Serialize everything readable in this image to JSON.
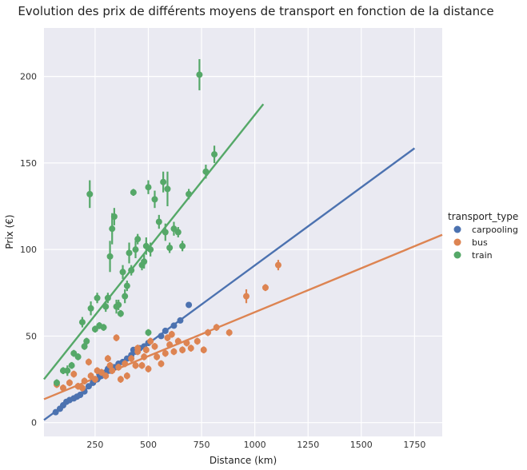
{
  "chart_data": {
    "type": "scatter",
    "title": "Evolution des prix de différents moyens de transport en fonction de la distance",
    "xlabel": "Distance (km)",
    "ylabel": "Prix (€)",
    "xlim": [
      10,
      1880
    ],
    "ylim": [
      -8,
      228
    ],
    "xticks": [
      "250",
      "500",
      "750",
      "1000",
      "1250",
      "1500",
      "1750"
    ],
    "xtick_values": [
      250,
      500,
      750,
      1000,
      1250,
      1500,
      1750
    ],
    "yticks": [
      "0",
      "50",
      "100",
      "150",
      "200"
    ],
    "ytick_values": [
      0,
      50,
      100,
      150,
      200
    ],
    "grid": true,
    "legend": {
      "title": "transport_type",
      "position": "right"
    },
    "series": [
      {
        "name": "carpooling",
        "color": "#4c72b0",
        "points": [
          [
            65,
            6,
            1
          ],
          [
            85,
            8,
            1
          ],
          [
            100,
            10,
            1
          ],
          [
            115,
            12,
            1
          ],
          [
            130,
            13,
            1
          ],
          [
            150,
            14,
            1
          ],
          [
            165,
            15,
            1
          ],
          [
            180,
            16,
            1
          ],
          [
            200,
            18,
            1
          ],
          [
            220,
            21,
            1
          ],
          [
            240,
            23,
            1
          ],
          [
            260,
            25,
            1
          ],
          [
            280,
            27,
            1
          ],
          [
            300,
            29,
            1
          ],
          [
            320,
            30,
            1
          ],
          [
            340,
            32,
            1
          ],
          [
            360,
            34,
            1
          ],
          [
            380,
            35,
            1
          ],
          [
            400,
            37,
            1
          ],
          [
            420,
            39,
            1
          ],
          [
            440,
            41,
            1
          ],
          [
            460,
            43,
            1
          ],
          [
            480,
            44,
            1
          ],
          [
            500,
            46,
            1
          ],
          [
            560,
            50,
            1
          ],
          [
            580,
            53,
            1
          ],
          [
            620,
            56,
            1
          ],
          [
            650,
            59,
            1
          ],
          [
            690,
            68,
            1
          ],
          [
            270,
            28,
            1
          ],
          [
            310,
            31,
            1
          ],
          [
            430,
            42,
            1
          ]
        ],
        "fit": {
          "x": [
            10,
            1750
          ],
          "y": [
            1.5,
            158.5
          ]
        }
      },
      {
        "name": "bus",
        "color": "#dd8452",
        "points": [
          [
            70,
            22,
            2
          ],
          [
            100,
            20,
            2
          ],
          [
            130,
            23,
            2
          ],
          [
            150,
            28,
            2
          ],
          [
            170,
            21,
            2
          ],
          [
            190,
            20,
            2
          ],
          [
            200,
            24,
            2
          ],
          [
            220,
            35,
            2
          ],
          [
            230,
            27,
            2
          ],
          [
            250,
            25,
            2
          ],
          [
            260,
            30,
            2
          ],
          [
            280,
            29,
            2
          ],
          [
            300,
            27,
            2
          ],
          [
            310,
            37,
            2
          ],
          [
            320,
            33,
            2
          ],
          [
            330,
            30,
            2
          ],
          [
            350,
            49,
            2
          ],
          [
            360,
            32,
            2
          ],
          [
            370,
            25,
            2
          ],
          [
            390,
            34,
            2
          ],
          [
            400,
            27,
            2
          ],
          [
            420,
            37,
            2
          ],
          [
            440,
            33,
            2
          ],
          [
            450,
            41,
            2
          ],
          [
            470,
            33,
            2
          ],
          [
            480,
            38,
            2
          ],
          [
            490,
            42,
            2
          ],
          [
            500,
            31,
            2
          ],
          [
            510,
            47,
            2
          ],
          [
            530,
            44,
            2
          ],
          [
            540,
            38,
            2
          ],
          [
            560,
            34,
            2
          ],
          [
            580,
            40,
            2
          ],
          [
            600,
            45,
            2
          ],
          [
            610,
            51,
            2
          ],
          [
            620,
            41,
            2
          ],
          [
            640,
            47,
            2
          ],
          [
            660,
            42,
            2
          ],
          [
            680,
            46,
            2
          ],
          [
            700,
            43,
            2
          ],
          [
            730,
            47,
            2
          ],
          [
            760,
            42,
            2
          ],
          [
            780,
            52,
            2
          ],
          [
            820,
            55,
            2
          ],
          [
            880,
            52,
            2
          ],
          [
            960,
            73,
            4
          ],
          [
            1050,
            78,
            2
          ],
          [
            1110,
            91,
            3
          ],
          [
            590,
            49,
            2
          ],
          [
            450,
            43,
            2
          ]
        ],
        "fit": {
          "x": [
            10,
            1880
          ],
          "y": [
            13.5,
            108.5
          ]
        }
      },
      {
        "name": "train",
        "color": "#55a868",
        "points": [
          [
            70,
            23,
            2
          ],
          [
            100,
            30,
            2
          ],
          [
            120,
            30,
            3
          ],
          [
            140,
            33,
            2
          ],
          [
            150,
            40,
            2
          ],
          [
            170,
            38,
            2
          ],
          [
            190,
            58,
            3
          ],
          [
            200,
            44,
            2
          ],
          [
            210,
            47,
            2
          ],
          [
            225,
            132,
            8
          ],
          [
            230,
            66,
            4
          ],
          [
            250,
            54,
            2
          ],
          [
            260,
            72,
            3
          ],
          [
            270,
            56,
            2
          ],
          [
            290,
            55,
            2
          ],
          [
            300,
            67,
            3
          ],
          [
            310,
            72,
            3
          ],
          [
            320,
            96,
            9
          ],
          [
            330,
            112,
            9
          ],
          [
            340,
            119,
            5
          ],
          [
            350,
            67,
            4
          ],
          [
            360,
            68,
            3
          ],
          [
            380,
            87,
            4
          ],
          [
            390,
            73,
            4
          ],
          [
            400,
            79,
            3
          ],
          [
            410,
            98,
            6
          ],
          [
            420,
            88,
            3
          ],
          [
            430,
            133,
            2
          ],
          [
            440,
            100,
            5
          ],
          [
            450,
            106,
            3
          ],
          [
            470,
            91,
            3
          ],
          [
            480,
            93,
            4
          ],
          [
            490,
            102,
            5
          ],
          [
            500,
            136,
            4
          ],
          [
            510,
            100,
            4
          ],
          [
            530,
            129,
            5
          ],
          [
            550,
            116,
            4
          ],
          [
            570,
            139,
            6
          ],
          [
            580,
            110,
            5
          ],
          [
            590,
            135,
            10
          ],
          [
            600,
            101,
            3
          ],
          [
            620,
            112,
            4
          ],
          [
            640,
            110,
            3
          ],
          [
            660,
            102,
            3
          ],
          [
            690,
            132,
            3
          ],
          [
            740,
            201,
            9
          ],
          [
            770,
            145,
            4
          ],
          [
            810,
            155,
            5
          ],
          [
            500,
            52,
            2
          ],
          [
            370,
            63,
            2
          ]
        ],
        "fit": {
          "x": [
            10,
            1040
          ],
          "y": [
            25,
            184
          ]
        }
      }
    ]
  }
}
